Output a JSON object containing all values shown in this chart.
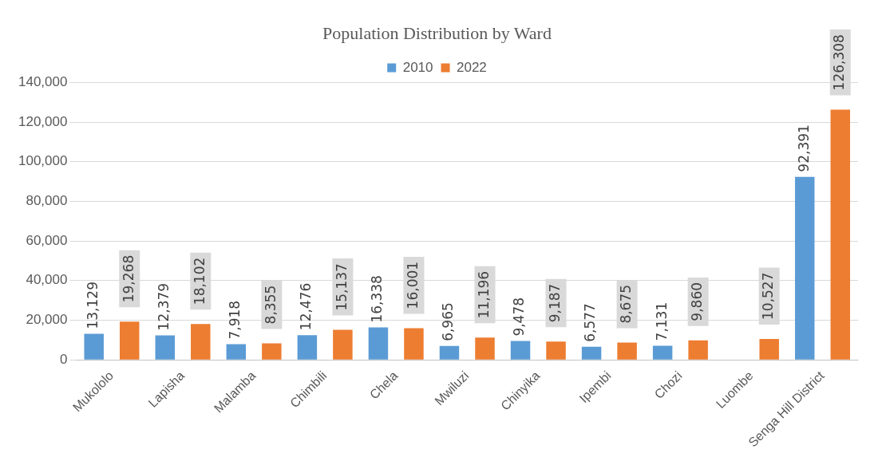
{
  "chart_data": {
    "type": "bar",
    "title": "Population Distribution by Ward",
    "categories": [
      "Mukololo",
      "Lapisha",
      "Malamba",
      "Chimbili",
      "Chela",
      "Mwiluzi",
      "Chinyika",
      "Ipembi",
      "Chozi",
      "Luombe",
      "Senga Hill District"
    ],
    "series": [
      {
        "name": "2010",
        "color": "#5b9bd5",
        "values": [
          13129,
          12379,
          7918,
          12476,
          16338,
          6965,
          9478,
          6577,
          7131,
          null,
          92391
        ],
        "value_labels": [
          "13,129",
          "12,379",
          "7,918",
          "12,476",
          "16,338",
          "6,965",
          "9,478",
          "6,577",
          "7,131",
          null,
          "92,391"
        ]
      },
      {
        "name": "2022",
        "color": "#ed7d31",
        "values": [
          19268,
          18102,
          8355,
          15137,
          16001,
          11196,
          9187,
          8675,
          9860,
          10527,
          126308
        ],
        "value_labels": [
          "19,268",
          "18,102",
          "8,355",
          "15,137",
          "16,001",
          "11,196",
          "9,187",
          "8,675",
          "9,860",
          "10,527",
          "126,308"
        ]
      }
    ],
    "ylim": [
      0,
      140000
    ],
    "yticks": [
      0,
      {
        "value": 20000,
        "label": "20,000"
      },
      {
        "value": 40000,
        "label": "40,000"
      },
      {
        "value": 60000,
        "label": "60,000"
      },
      {
        "value": 80000,
        "label": "80,000"
      },
      {
        "value": 100000,
        "label": "100,000"
      },
      {
        "value": 120000,
        "label": "120,000"
      },
      {
        "value": 140000,
        "label": "140,000"
      }
    ],
    "grid": "y",
    "legend": "top"
  }
}
